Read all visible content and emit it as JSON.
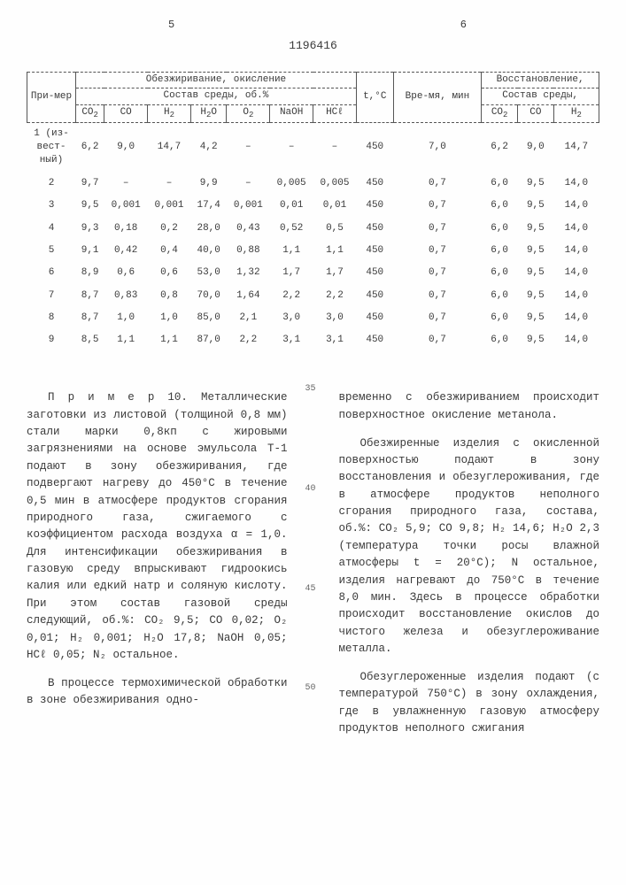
{
  "page": {
    "left_num": "5",
    "doc_num": "1196416",
    "right_num": "6"
  },
  "table": {
    "h_primer": "При-мер",
    "h_obzh": "Обезжиривание, окисление",
    "h_sostav": "Состав среды, об.%",
    "h_t": "t,°C",
    "h_vremya": "Вре-мя, мин",
    "h_vosst": "Восстановление,",
    "h_sostav2": "Состав среды,",
    "cols": [
      "CO₂",
      "CO",
      "H₂",
      "H₂O",
      "O₂",
      "NaOH",
      "HCℓ",
      "",
      "",
      "CO₂",
      "CO",
      "H₂"
    ],
    "rows": [
      {
        "lbl": "1 (из-вест-ный)",
        "v": [
          "6,2",
          "9,0",
          "14,7",
          "4,2",
          "–",
          "–",
          "–",
          "450",
          "7,0",
          "6,2",
          "9,0",
          "14,7"
        ]
      },
      {
        "lbl": "2",
        "v": [
          "9,7",
          "–",
          "–",
          "9,9",
          "–",
          "0,005",
          "0,005",
          "450",
          "0,7",
          "6,0",
          "9,5",
          "14,0"
        ]
      },
      {
        "lbl": "3",
        "v": [
          "9,5",
          "0,001",
          "0,001",
          "17,4",
          "0,001",
          "0,01",
          "0,01",
          "450",
          "0,7",
          "6,0",
          "9,5",
          "14,0"
        ]
      },
      {
        "lbl": "4",
        "v": [
          "9,3",
          "0,18",
          "0,2",
          "28,0",
          "0,43",
          "0,52",
          "0,5",
          "450",
          "0,7",
          "6,0",
          "9,5",
          "14,0"
        ]
      },
      {
        "lbl": "5",
        "v": [
          "9,1",
          "0,42",
          "0,4",
          "40,0",
          "0,88",
          "1,1",
          "1,1",
          "450",
          "0,7",
          "6,0",
          "9,5",
          "14,0"
        ]
      },
      {
        "lbl": "6",
        "v": [
          "8,9",
          "0,6",
          "0,6",
          "53,0",
          "1,32",
          "1,7",
          "1,7",
          "450",
          "0,7",
          "6,0",
          "9,5",
          "14,0"
        ]
      },
      {
        "lbl": "7",
        "v": [
          "8,7",
          "0,83",
          "0,8",
          "70,0",
          "1,64",
          "2,2",
          "2,2",
          "450",
          "0,7",
          "6,0",
          "9,5",
          "14,0"
        ]
      },
      {
        "lbl": "8",
        "v": [
          "8,7",
          "1,0",
          "1,0",
          "85,0",
          "2,1",
          "3,0",
          "3,0",
          "450",
          "0,7",
          "6,0",
          "9,5",
          "14,0"
        ]
      },
      {
        "lbl": "9",
        "v": [
          "8,5",
          "1,1",
          "1,1",
          "87,0",
          "2,2",
          "3,1",
          "3,1",
          "450",
          "0,7",
          "6,0",
          "9,5",
          "14,0"
        ]
      }
    ]
  },
  "body": {
    "left_p1": "П р и м е р  10. Металлические заготовки из листовой (толщиной 0,8 мм) стали марки 0,8кп с жировыми загрязнениями на основе эмульсола Т-1 подают в зону обезжиривания, где подвергают нагреву до 450°С в течение 0,5 мин в атмосфере продуктов сгорания природного газа, сжигаемого с коэффициентом расхода воздуха α = 1,0. Для интенсификации обезжиривания в газовую среду впрыскивают гидроокись калия или едкий натр и соляную кислоту. При этом состав газовой среды следующий, об.%: CO₂ 9,5; CO  0,02; O₂ 0,01; H₂ 0,001; H₂O 17,8; NaOH 0,05; HCℓ 0,05; N₂ остальное.",
    "left_p2": "В процессе термохимической обработки в зоне обезжиривания одно-",
    "right_p1": "временно с обезжириванием происходит поверхностное окисление метанола.",
    "right_p2": "Обезжиренные изделия с окисленной поверхностью подают в зону восстановления и обезуглероживания, где в атмосфере продуктов неполного сгорания природного газа, состава, об.%: CO₂ 5,9; CO  9,8; H₂ 14,6; H₂O  2,3 (температура точки росы влажной атмосферы t = 20°С); N  остальное, изделия нагревают до 750°С в течение 8,0 мин. Здесь в процессе обработки происходит восстановление окислов до чистого железа и обезуглероживание металла.",
    "right_p3": "Обезуглероженные изделия подают (с температурой 750°С) в зону охлаждения, где в увлажненную газовую атмосферу продуктов неполного сжигания",
    "m35": "35",
    "m40": "40",
    "m45": "45",
    "m50": "50"
  }
}
